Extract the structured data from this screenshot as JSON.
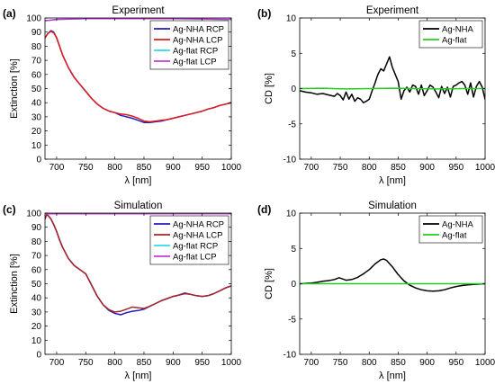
{
  "chart_data": [
    {
      "panel": "(a)",
      "type": "line",
      "title": "Experiment",
      "xlabel": "λ [nm]",
      "ylabel": "Extinction [%]",
      "xlim": [
        680,
        1000
      ],
      "ylim": [
        0,
        100
      ],
      "xticks": [
        700,
        750,
        800,
        850,
        900,
        950,
        1000
      ],
      "yticks": [
        0,
        10,
        20,
        30,
        40,
        50,
        60,
        70,
        80,
        90,
        100
      ],
      "legend_position": "top-right",
      "series": [
        {
          "name": "Ag-NHA RCP",
          "color": "#1f1fbf",
          "x": [
            680,
            685,
            690,
            695,
            700,
            705,
            710,
            720,
            730,
            740,
            750,
            760,
            770,
            780,
            790,
            800,
            810,
            820,
            830,
            840,
            850,
            860,
            870,
            880,
            890,
            900,
            910,
            920,
            930,
            940,
            950,
            960,
            970,
            980,
            990,
            1000
          ],
          "y": [
            86,
            89,
            91,
            90,
            86,
            80,
            74,
            65,
            58,
            53,
            48,
            43,
            39,
            36,
            34,
            33,
            31,
            30,
            29,
            27.5,
            26,
            26,
            26.5,
            27,
            28,
            29,
            30,
            31,
            32,
            33,
            34,
            35.5,
            36.5,
            38,
            39,
            40
          ]
        },
        {
          "name": "Ag-NHA LCP",
          "color": "#e01c1c",
          "x": [
            680,
            685,
            690,
            695,
            700,
            705,
            710,
            720,
            730,
            740,
            750,
            760,
            770,
            780,
            790,
            800,
            810,
            820,
            830,
            840,
            850,
            860,
            870,
            880,
            890,
            900,
            910,
            920,
            930,
            940,
            950,
            960,
            970,
            980,
            990,
            1000
          ],
          "y": [
            86,
            89,
            90.5,
            89.5,
            86,
            80,
            74,
            65,
            58,
            53,
            48,
            43,
            39,
            36,
            34,
            33,
            32,
            31.5,
            30.5,
            29,
            27,
            26.5,
            27,
            27.5,
            28,
            29,
            30,
            31,
            32,
            33,
            34,
            35.5,
            36.5,
            38,
            39,
            40
          ]
        },
        {
          "name": "Ag-flat RCP",
          "color": "#2fd9e8",
          "x": [
            680,
            700,
            750,
            800,
            850,
            900,
            950,
            1000
          ],
          "y": [
            98,
            99,
            99.5,
            99.5,
            99.5,
            99.5,
            99.3,
            99
          ]
        },
        {
          "name": "Ag-flat LCP",
          "color": "#c23bd6",
          "x": [
            680,
            700,
            750,
            800,
            850,
            900,
            950,
            1000
          ],
          "y": [
            98,
            99,
            99.5,
            99.5,
            99.5,
            99.5,
            99.3,
            99
          ]
        }
      ]
    },
    {
      "panel": "(b)",
      "type": "line",
      "title": "Experiment",
      "xlabel": "λ [nm]",
      "ylabel": "CD [%]",
      "xlim": [
        680,
        1000
      ],
      "ylim": [
        -10,
        10
      ],
      "xticks": [
        700,
        750,
        800,
        850,
        900,
        950,
        1000
      ],
      "yticks": [
        -10,
        -5,
        0,
        5,
        10
      ],
      "legend_position": "top-right",
      "series": [
        {
          "name": "Ag-NHA",
          "color": "#000000",
          "x": [
            680,
            690,
            700,
            710,
            720,
            730,
            740,
            745,
            750,
            755,
            760,
            765,
            770,
            775,
            780,
            785,
            790,
            795,
            800,
            805,
            810,
            815,
            820,
            825,
            830,
            835,
            840,
            845,
            850,
            855,
            860,
            865,
            870,
            875,
            880,
            885,
            890,
            895,
            900,
            905,
            910,
            915,
            920,
            925,
            930,
            935,
            940,
            945,
            950,
            955,
            960,
            965,
            970,
            975,
            980,
            985,
            990,
            995,
            1000
          ],
          "y": [
            -0.3,
            -0.5,
            -0.6,
            -0.8,
            -0.7,
            -0.9,
            -1.1,
            -0.7,
            -1.0,
            -1.6,
            -0.5,
            -1.5,
            -0.8,
            -1.8,
            -1.3,
            -1.5,
            -2.0,
            -1.8,
            -1.5,
            -0.3,
            0.8,
            2.0,
            2.8,
            2.5,
            3.5,
            4.5,
            3.0,
            2.0,
            1.0,
            -1.5,
            -0.3,
            0.2,
            -0.5,
            0.5,
            0.3,
            -0.8,
            0.5,
            -1.0,
            -0.3,
            0.5,
            0.2,
            -0.5,
            -1.3,
            0.3,
            -0.7,
            0.2,
            -1.2,
            0.3,
            0.5,
            0.8,
            1.0,
            0.5,
            -0.8,
            0.8,
            -1.2,
            0.3,
            1.0,
            0.2,
            -1.5
          ]
        },
        {
          "name": "Ag-flat",
          "color": "#22cc22",
          "x": [
            680,
            720,
            760,
            800,
            840,
            880,
            920,
            960,
            1000
          ],
          "y": [
            0,
            0.05,
            -0.05,
            0,
            0.05,
            0,
            -0.05,
            0,
            0
          ]
        }
      ]
    },
    {
      "panel": "(c)",
      "type": "line",
      "title": "Simulation",
      "xlabel": "λ [nm]",
      "ylabel": "Extinction [%]",
      "xlim": [
        680,
        1000
      ],
      "ylim": [
        0,
        100
      ],
      "xticks": [
        700,
        750,
        800,
        850,
        900,
        950,
        1000
      ],
      "yticks": [
        0,
        10,
        20,
        30,
        40,
        50,
        60,
        70,
        80,
        90,
        100
      ],
      "legend_position": "top-right",
      "series": [
        {
          "name": "Ag-NHA RCP",
          "color": "#1f1fbf",
          "x": [
            680,
            683,
            686,
            690,
            695,
            700,
            705,
            710,
            720,
            730,
            740,
            750,
            760,
            770,
            780,
            790,
            800,
            810,
            820,
            830,
            840,
            850,
            860,
            870,
            880,
            890,
            900,
            910,
            920,
            930,
            940,
            950,
            960,
            970,
            980,
            990,
            1000
          ],
          "y": [
            96,
            99,
            98,
            96,
            92,
            87,
            81,
            76,
            68,
            63,
            60,
            57,
            49,
            41,
            35,
            31,
            29,
            28,
            29.5,
            30.5,
            31,
            32,
            34,
            36,
            38,
            39.5,
            41,
            42,
            43,
            42.5,
            41.5,
            41,
            41.5,
            43,
            45,
            47,
            48.5
          ]
        },
        {
          "name": "Ag-NHA LCP",
          "color": "#a62626",
          "x": [
            680,
            683,
            686,
            690,
            695,
            700,
            705,
            710,
            720,
            730,
            740,
            750,
            760,
            770,
            780,
            790,
            800,
            810,
            820,
            830,
            840,
            850,
            860,
            870,
            880,
            890,
            900,
            910,
            920,
            930,
            940,
            950,
            960,
            970,
            980,
            990,
            1000
          ],
          "y": [
            96,
            99,
            98,
            96,
            92,
            87,
            81,
            76,
            68,
            63,
            60,
            57,
            49,
            41,
            35,
            31.5,
            30,
            30.5,
            32,
            33.5,
            33,
            32.5,
            34,
            36,
            38,
            39.5,
            41,
            42,
            43.5,
            42.5,
            41.5,
            41,
            41.5,
            43,
            45,
            47,
            48.5
          ]
        },
        {
          "name": "Ag-flat RCP",
          "color": "#2fd9e8",
          "x": [
            680,
            700,
            750,
            800,
            850,
            900,
            950,
            1000
          ],
          "y": [
            99.5,
            99.5,
            99.5,
            99.5,
            99.5,
            99.5,
            99.5,
            99.5
          ]
        },
        {
          "name": "Ag-flat LCP",
          "color": "#c23bd6",
          "x": [
            680,
            700,
            750,
            800,
            850,
            900,
            950,
            1000
          ],
          "y": [
            99.5,
            99.5,
            99.5,
            99.5,
            99.5,
            99.5,
            99.5,
            99.5
          ]
        }
      ]
    },
    {
      "panel": "(d)",
      "type": "line",
      "title": "Simulation",
      "xlabel": "λ [nm]",
      "ylabel": "CD [%]",
      "xlim": [
        680,
        1000
      ],
      "ylim": [
        -10,
        10
      ],
      "xticks": [
        700,
        750,
        800,
        850,
        900,
        950,
        1000
      ],
      "yticks": [
        -10,
        -5,
        0,
        5,
        10
      ],
      "legend_position": "top-right",
      "series": [
        {
          "name": "Ag-NHA",
          "color": "#000000",
          "x": [
            680,
            690,
            700,
            710,
            720,
            730,
            740,
            748,
            755,
            760,
            770,
            780,
            790,
            800,
            810,
            820,
            825,
            830,
            840,
            850,
            860,
            870,
            880,
            890,
            900,
            910,
            920,
            930,
            940,
            950,
            960,
            970,
            980,
            990,
            1000
          ],
          "y": [
            0,
            0.05,
            0.1,
            0.2,
            0.35,
            0.45,
            0.6,
            0.85,
            0.65,
            0.5,
            0.6,
            0.9,
            1.4,
            2.0,
            2.8,
            3.4,
            3.5,
            3.3,
            2.4,
            1.3,
            0.4,
            -0.2,
            -0.6,
            -0.85,
            -1.0,
            -1.05,
            -1.0,
            -0.85,
            -0.6,
            -0.4,
            -0.25,
            -0.15,
            -0.1,
            -0.05,
            0
          ]
        },
        {
          "name": "Ag-flat",
          "color": "#22cc22",
          "x": [
            680,
            720,
            760,
            800,
            840,
            880,
            920,
            960,
            1000
          ],
          "y": [
            0,
            0,
            0,
            0,
            0,
            0,
            0,
            0,
            0
          ]
        }
      ]
    }
  ]
}
